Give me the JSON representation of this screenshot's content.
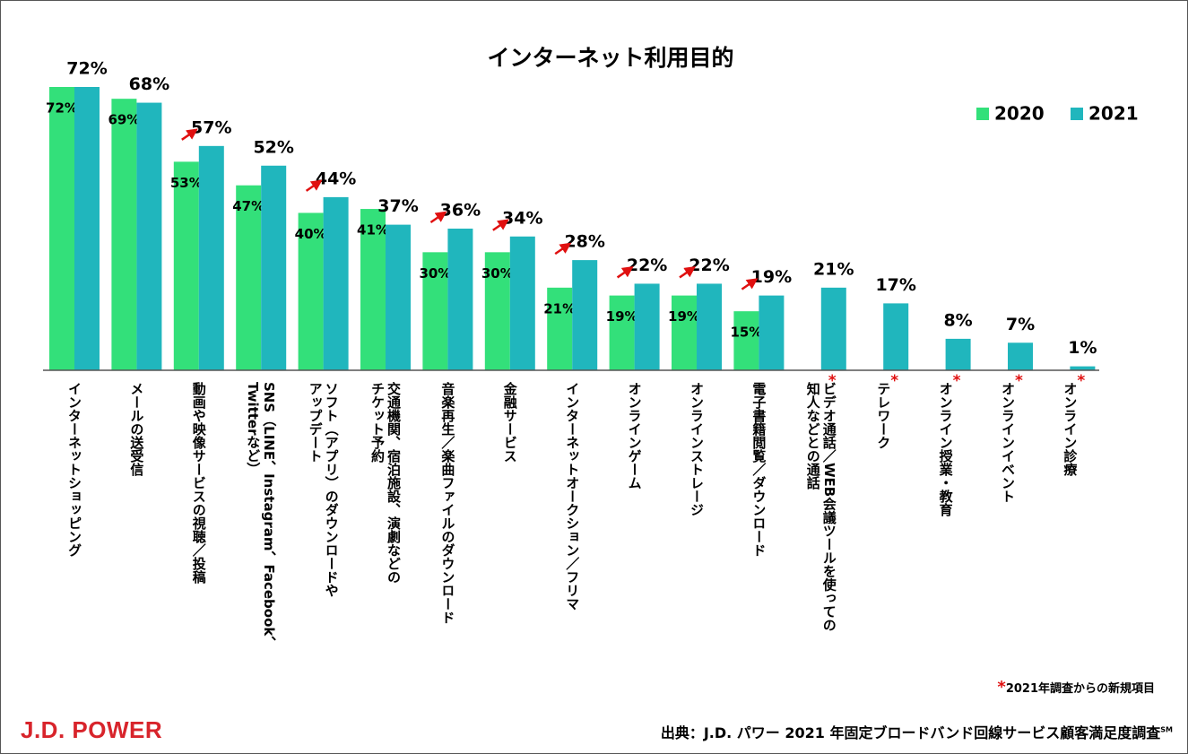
{
  "chart_data": {
    "type": "bar",
    "title": "インターネット利用目的",
    "categories": [
      "インターネットショッピング",
      "メールの送受信",
      "動画や映像サービスの視聴／投稿",
      "SNS（LINE、Instagram、Facebook、\nTwitterなど）",
      "ソフト（アプリ）のダウンロードや\nアップデート",
      "交通機関、宿泊施設、演劇などの\nチケット予約",
      "音楽再生／楽曲ファイルのダウンロード",
      "金融サービス",
      "インターネットオークション／フリマ",
      "オンラインゲーム",
      "オンラインストレージ",
      "電子書籍閲覧／ダウンロード",
      "ビデオ通話／WEB会議ツールを使っての\n知人などとの通話",
      "テレワーク",
      "オンライン授業・教育",
      "オンラインイベント",
      "オンライン診療"
    ],
    "series": [
      {
        "name": "2020",
        "color": "#33e07a",
        "values": [
          72,
          69,
          53,
          47,
          40,
          41,
          30,
          30,
          21,
          19,
          19,
          15,
          null,
          null,
          null,
          null,
          null
        ],
        "value_labels": [
          "72%",
          "69%",
          "53%",
          "47%",
          "40%",
          "41%",
          "30%",
          "30%",
          "21%",
          "19%",
          "19%",
          "15%",
          null,
          null,
          null,
          null,
          null
        ]
      },
      {
        "name": "2021",
        "color": "#20b6bd",
        "values": [
          72,
          68,
          57,
          52,
          44,
          37,
          36,
          34,
          28,
          22,
          22,
          19,
          21,
          17,
          8,
          7,
          1
        ],
        "value_labels": [
          "72%",
          "68%",
          "57%",
          "52%",
          "44%",
          "37%",
          "36%",
          "34%",
          "28%",
          "22%",
          "22%",
          "19%",
          "21%",
          "17%",
          "8%",
          "7%",
          "1%"
        ]
      }
    ],
    "increase_arrows": [
      false,
      false,
      true,
      false,
      true,
      false,
      true,
      true,
      true,
      true,
      true,
      true,
      false,
      false,
      false,
      false,
      false
    ],
    "new_items": [
      false,
      false,
      false,
      false,
      false,
      false,
      false,
      false,
      false,
      false,
      false,
      false,
      true,
      true,
      true,
      true,
      true
    ],
    "note_marker": "*",
    "note": "2021年調査からの新規項目",
    "source": "出典：J.D. パワー 2021 年固定ブロードバンド回線サービス顧客満足度調査",
    "source_mark": "SM",
    "brand": "J.D. POWER"
  }
}
